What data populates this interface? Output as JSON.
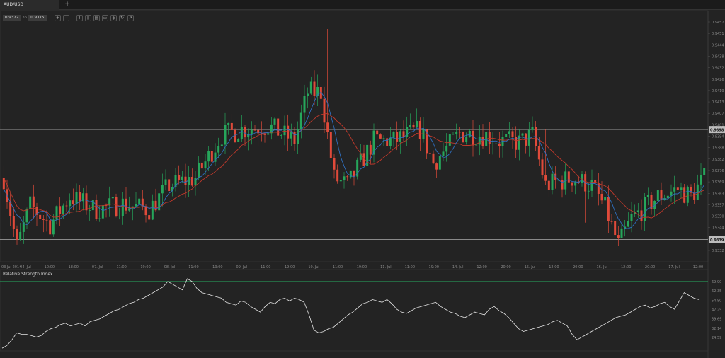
{
  "tabs": [
    {
      "label": "AUD/USD"
    }
  ],
  "add_tab": "+",
  "quote": {
    "bid": "0.9372",
    "ask": "0.9375",
    "separator": "36"
  },
  "toolbar_icons": [
    "zoom-in-icon",
    "zoom-out-icon",
    "line-chart-icon",
    "candle-chart-icon",
    "bar-chart-icon",
    "area-chart-icon",
    "template-icon",
    "indicator-icon",
    "draw-icon"
  ],
  "toolbar_glyphs": [
    "+",
    "−",
    "⌇",
    "⫼",
    "▤",
    "▭",
    "◈",
    "↻",
    "↗"
  ],
  "colors": {
    "background": "#232323",
    "bull": "#26a65b",
    "bear": "#e04a3a",
    "ma_red": "#c0392b",
    "ma_blue": "#2f6fbf",
    "line": "#e6e6e6",
    "rsi_upper": "#27ae60",
    "rsi_lower": "#c0392b"
  },
  "chart_data": [
    {
      "type": "candlestick",
      "symbol": "AUD/USD",
      "y_ticks": [
        "0.9457",
        "0.9451",
        "0.9444",
        "0.9438",
        "0.9432",
        "0.9426",
        "0.9419",
        "0.9413",
        "0.9407",
        "0.9401",
        "0.9394",
        "0.9388",
        "0.9382",
        "0.9376",
        "0.9369",
        "0.9363",
        "0.9357",
        "0.9350",
        "0.9344",
        "0.9338",
        "0.9332"
      ],
      "ylim": [
        0.9327,
        0.946
      ],
      "x_ticks": [
        "03 Jul 2014",
        "04. Jul",
        "10:00",
        "18:00",
        "07. Jul",
        "11:00",
        "19:00",
        "08. Jul",
        "11:00",
        "19:00",
        "09. Jul",
        "11:00",
        "19:00",
        "10. Jul",
        "11:00",
        "19:00",
        "11. Jul",
        "11:00",
        "19:00",
        "14. Jul",
        "12:00",
        "20:00",
        "15. Jul",
        "12:00",
        "20:00",
        "16. Jul",
        "12:00",
        "20:00",
        "17. Jul",
        "12:00"
      ],
      "horizontal_lines": [
        {
          "value": 0.9398,
          "label": "0.9398"
        },
        {
          "value": 0.9339,
          "label": "0.9339"
        }
      ],
      "indicators": [
        "moving-average-red",
        "moving-average-blue"
      ]
    },
    {
      "type": "line",
      "title": "Relative Strength Index",
      "y_ticks": [
        "69.90",
        "62.35",
        "54.80",
        "47.25",
        "39.69",
        "32.14",
        "24.59"
      ],
      "ylim": [
        20,
        73
      ],
      "levels": [
        70,
        30
      ],
      "values": [
        22,
        24,
        28,
        33,
        32,
        32,
        31,
        30,
        31,
        34,
        36,
        37,
        39,
        40,
        38,
        39,
        40,
        38,
        41,
        42,
        43,
        45,
        47,
        49,
        50,
        52,
        54,
        55,
        57,
        58,
        60,
        62,
        64,
        66,
        70,
        68,
        66,
        64,
        72,
        70,
        65,
        62,
        61,
        60,
        59,
        58,
        55,
        54,
        53,
        56,
        55,
        52,
        50,
        48,
        52,
        55,
        54,
        57,
        58,
        56,
        58,
        57,
        55,
        46,
        35,
        33,
        34,
        36,
        37,
        40,
        43,
        46,
        48,
        51,
        54,
        55,
        57,
        56,
        55,
        57,
        54,
        50,
        48,
        47,
        49,
        51,
        52,
        53,
        54,
        55,
        52,
        50,
        48,
        47,
        45,
        44,
        46,
        48,
        47,
        46,
        50,
        52,
        49,
        47,
        44,
        40,
        36,
        34,
        35,
        36,
        37,
        38,
        39,
        41,
        42,
        40,
        38,
        32,
        28,
        30,
        32,
        34,
        36,
        38,
        40,
        42,
        44,
        45,
        46,
        48,
        50,
        52,
        53,
        51,
        52,
        54,
        55,
        52,
        50,
        56,
        62,
        60,
        58,
        57
      ]
    }
  ]
}
